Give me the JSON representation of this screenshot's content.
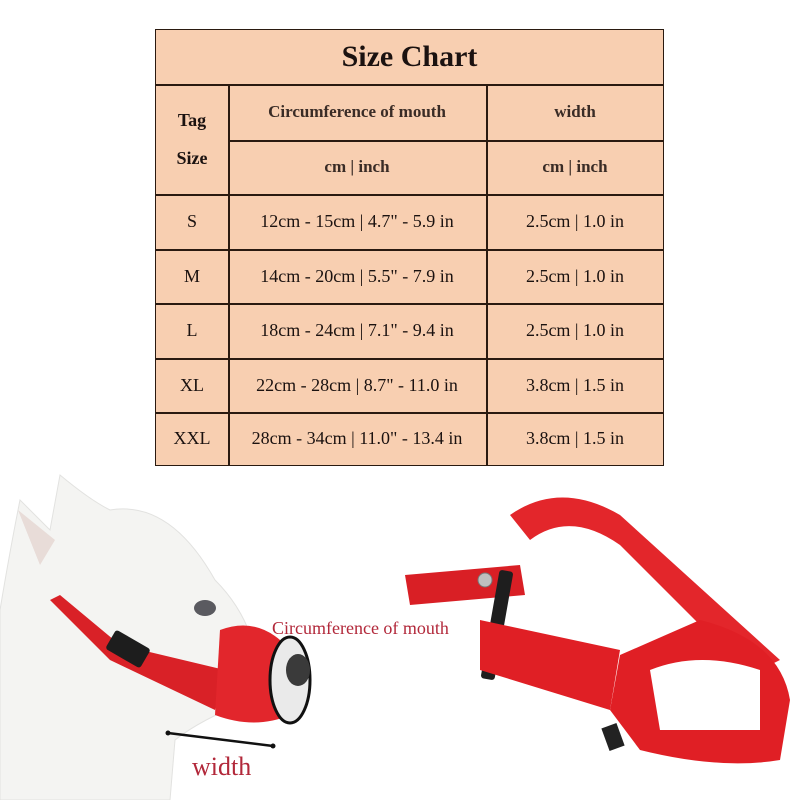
{
  "title": "Size Chart",
  "headers": {
    "tag": "Tag",
    "size": "Size",
    "circumference": "Circumference of mouth",
    "width": "width",
    "circumference_unit": "cm | inch",
    "width_unit": "cm | inch"
  },
  "rows": [
    {
      "size": "S",
      "circumference": "12cm - 15cm | 4.7\" - 5.9 in",
      "width": "2.5cm | 1.0 in"
    },
    {
      "size": "M",
      "circumference": "14cm - 20cm | 5.5\" - 7.9 in",
      "width": "2.5cm | 1.0 in"
    },
    {
      "size": "L",
      "circumference": "18cm - 24cm | 7.1\" - 9.4 in",
      "width": "2.5cm | 1.0 in"
    },
    {
      "size": "XL",
      "circumference": "22cm - 28cm | 8.7\" - 11.0 in",
      "width": "3.8cm | 1.5 in"
    },
    {
      "size": "XXL",
      "circumference": "28cm - 34cm | 11.0\" - 13.4 in",
      "width": "3.8cm | 1.5 in"
    }
  ],
  "photo_labels": {
    "circumference": "Circumference of mouth",
    "width": "width"
  },
  "colors": {
    "table_bg": "#f8cfb1",
    "label": "#b2283a",
    "muzzle": "#e01f25"
  }
}
